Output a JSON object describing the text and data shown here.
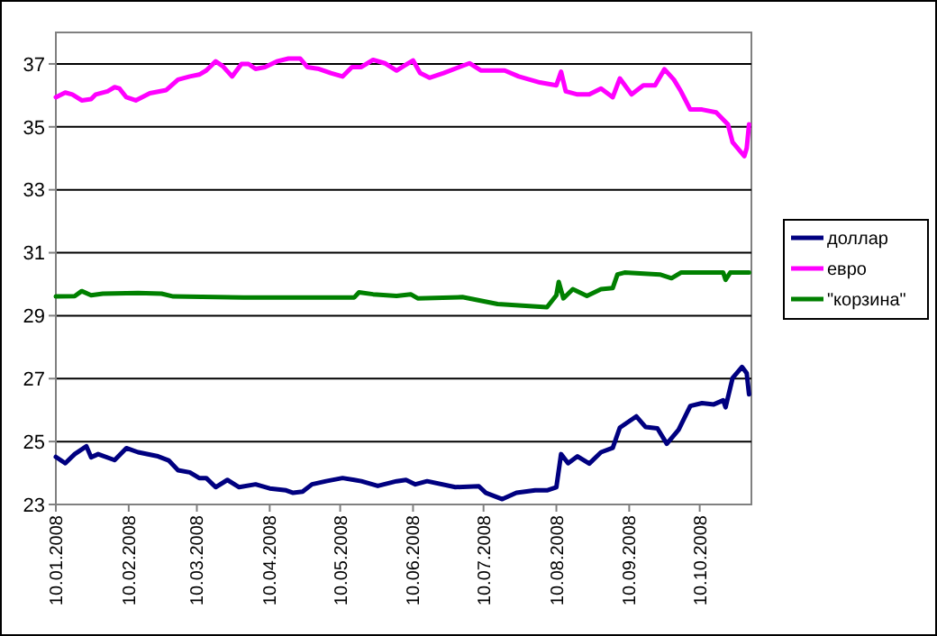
{
  "chart_data": {
    "type": "line",
    "x": [
      "2008-01-10",
      "2008-01-14",
      "2008-01-18",
      "2008-01-23",
      "2008-01-25",
      "2008-01-28",
      "2008-02-04",
      "2008-02-09",
      "2008-02-14",
      "2008-02-22",
      "2008-02-27",
      "2008-03-02",
      "2008-03-07",
      "2008-03-11",
      "2008-03-14",
      "2008-03-18",
      "2008-03-23",
      "2008-03-28",
      "2008-04-04",
      "2008-04-10",
      "2008-04-17",
      "2008-04-20",
      "2008-04-24",
      "2008-04-28",
      "2008-05-04",
      "2008-05-11",
      "2008-05-16",
      "2008-05-19",
      "2008-05-26",
      "2008-06-03",
      "2008-06-07",
      "2008-06-11",
      "2008-06-16",
      "2008-06-28",
      "2008-07-08",
      "2008-07-11",
      "2008-07-18",
      "2008-07-24",
      "2008-08-01",
      "2008-08-06",
      "2008-08-10",
      "2008-08-12",
      "2008-08-15",
      "2008-08-19",
      "2008-08-24",
      "2008-08-29",
      "2008-09-03",
      "2008-09-06",
      "2008-09-13",
      "2008-09-17",
      "2008-09-22",
      "2008-09-26",
      "2008-10-01",
      "2008-10-06",
      "2008-10-11",
      "2008-10-16",
      "2008-10-20",
      "2008-10-21",
      "2008-10-24",
      "2008-10-28",
      "2008-10-30",
      "2008-10-31"
    ],
    "series": [
      {
        "name": "доллар",
        "color": "#000080",
        "values": [
          24.51,
          24.31,
          24.6,
          24.85,
          24.5,
          24.6,
          24.41,
          24.79,
          24.66,
          24.54,
          24.4,
          24.09,
          24.02,
          23.84,
          23.84,
          23.55,
          23.78,
          23.55,
          23.64,
          23.51,
          23.45,
          23.37,
          23.41,
          23.64,
          23.74,
          23.84,
          23.78,
          23.74,
          23.59,
          23.74,
          23.78,
          23.64,
          23.74,
          23.55,
          23.58,
          23.37,
          23.17,
          23.37,
          23.45,
          23.45,
          23.55,
          24.6,
          24.31,
          24.53,
          24.3,
          24.66,
          24.8,
          25.44,
          25.8,
          25.46,
          25.42,
          24.93,
          25.37,
          26.13,
          26.22,
          26.18,
          26.31,
          26.09,
          27.02,
          27.37,
          27.17,
          26.5
        ]
      },
      {
        "name": "евро",
        "color": "#ff00ff",
        "x": [
          "2008-01-10",
          "2008-01-14",
          "2008-01-17",
          "2008-01-21",
          "2008-01-25",
          "2008-01-27",
          "2008-02-01",
          "2008-02-04",
          "2008-02-06",
          "2008-02-09",
          "2008-02-13",
          "2008-02-19",
          "2008-02-26",
          "2008-03-02",
          "2008-03-07",
          "2008-03-11",
          "2008-03-14",
          "2008-03-18",
          "2008-03-21",
          "2008-03-25",
          "2008-03-29",
          "2008-04-01",
          "2008-04-04",
          "2008-04-08",
          "2008-04-13",
          "2008-04-18",
          "2008-04-23",
          "2008-04-26",
          "2008-05-01",
          "2008-05-06",
          "2008-05-11",
          "2008-05-15",
          "2008-05-19",
          "2008-05-24",
          "2008-05-29",
          "2008-06-03",
          "2008-06-06",
          "2008-06-10",
          "2008-06-13",
          "2008-06-17",
          "2008-06-23",
          "2008-07-04",
          "2008-07-09",
          "2008-07-19",
          "2008-07-25",
          "2008-08-03",
          "2008-08-10",
          "2008-08-12",
          "2008-08-14",
          "2008-08-19",
          "2008-08-24",
          "2008-08-29",
          "2008-09-03",
          "2008-09-06",
          "2008-09-11",
          "2008-09-16",
          "2008-09-21",
          "2008-09-25",
          "2008-09-29",
          "2008-10-02",
          "2008-10-06",
          "2008-10-11",
          "2008-10-17",
          "2008-10-22",
          "2008-10-24",
          "2008-10-29",
          "2008-10-30",
          "2008-10-31"
        ],
        "values": [
          35.94,
          36.09,
          36.03,
          35.84,
          35.88,
          36.03,
          36.13,
          36.26,
          36.22,
          35.94,
          35.84,
          36.07,
          36.17,
          36.5,
          36.6,
          36.66,
          36.79,
          37.08,
          36.93,
          36.6,
          37.0,
          37.0,
          36.84,
          36.9,
          37.08,
          37.17,
          37.17,
          36.9,
          36.84,
          36.71,
          36.6,
          36.9,
          36.9,
          37.13,
          37.02,
          36.79,
          36.93,
          37.11,
          36.71,
          36.56,
          36.71,
          37.02,
          36.79,
          36.79,
          36.6,
          36.41,
          36.32,
          36.75,
          36.13,
          36.03,
          36.03,
          36.22,
          35.94,
          36.54,
          36.03,
          36.32,
          36.32,
          36.83,
          36.5,
          36.13,
          35.55,
          35.55,
          35.46,
          35.08,
          34.51,
          34.07,
          34.32,
          35.08
        ]
      },
      {
        "name": "\"корзина\"",
        "color": "#008000",
        "x": [
          "2008-01-10",
          "2008-01-18",
          "2008-01-21",
          "2008-01-25",
          "2008-01-30",
          "2008-02-14",
          "2008-02-24",
          "2008-02-29",
          "2008-03-30",
          "2008-05-16",
          "2008-05-18",
          "2008-05-24",
          "2008-06-03",
          "2008-06-09",
          "2008-06-12",
          "2008-07-01",
          "2008-07-16",
          "2008-08-06",
          "2008-08-10",
          "2008-08-11",
          "2008-08-13",
          "2008-08-17",
          "2008-08-23",
          "2008-08-29",
          "2008-09-03",
          "2008-09-05",
          "2008-09-08",
          "2008-09-23",
          "2008-09-28",
          "2008-10-02",
          "2008-10-20",
          "2008-10-21",
          "2008-10-23",
          "2008-10-31"
        ],
        "values": [
          29.61,
          29.62,
          29.78,
          29.65,
          29.7,
          29.72,
          29.7,
          29.61,
          29.58,
          29.58,
          29.74,
          29.68,
          29.63,
          29.68,
          29.55,
          29.59,
          29.37,
          29.27,
          29.65,
          30.07,
          29.55,
          29.84,
          29.63,
          29.84,
          29.88,
          30.31,
          30.37,
          30.31,
          30.19,
          30.37,
          30.37,
          30.14,
          30.37,
          30.37
        ]
      }
    ],
    "xlim": [
      "2008-01-10",
      "2008-11-01"
    ],
    "xticks": [
      {
        "value": "2008-01-10",
        "label": "10.01.2008"
      },
      {
        "value": "2008-02-10",
        "label": "10.02.2008"
      },
      {
        "value": "2008-03-10",
        "label": "10.03.2008"
      },
      {
        "value": "2008-04-10",
        "label": "10.04.2008"
      },
      {
        "value": "2008-05-10",
        "label": "10.05.2008"
      },
      {
        "value": "2008-06-10",
        "label": "10.06.2008"
      },
      {
        "value": "2008-07-10",
        "label": "10.07.2008"
      },
      {
        "value": "2008-08-10",
        "label": "10.08.2008"
      },
      {
        "value": "2008-09-10",
        "label": "10.09.2008"
      },
      {
        "value": "2008-10-10",
        "label": "10.10.2008"
      }
    ],
    "ylim": [
      23,
      38
    ],
    "yticks": [
      23,
      25,
      27,
      29,
      31,
      33,
      35,
      37
    ],
    "grid": "y",
    "legend": "right",
    "marker": "none",
    "line_style": "solid"
  }
}
